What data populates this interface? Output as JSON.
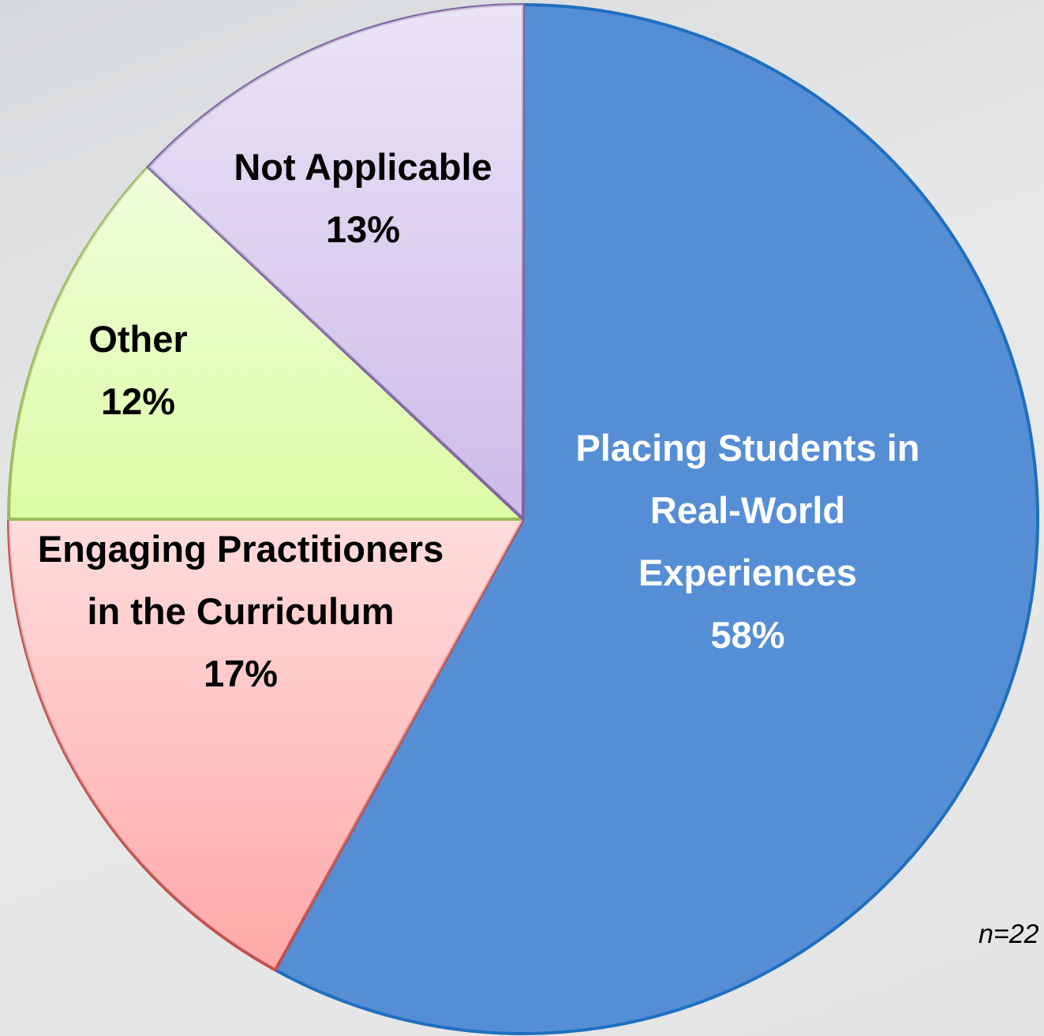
{
  "chart_data": {
    "type": "pie",
    "categories": [
      "Placing Students in Real-World Experiences",
      "Engaging Practitioners in the Curriculum",
      "Other",
      "Not Applicable"
    ],
    "values": [
      58,
      17,
      12,
      13
    ],
    "value_labels": [
      "58%",
      "17%",
      "12%",
      "13%"
    ],
    "colors": [
      "#558ed5",
      "#ffa8a8",
      "#dcfca6",
      "#cdbbe9"
    ],
    "stroke_colors": [
      "#1f6fc0",
      "#c0504d",
      "#9bbb59",
      "#8064a2"
    ],
    "label_colors": [
      "#ffffff",
      "#000000",
      "#000000",
      "#000000"
    ],
    "annotation": "n=22"
  }
}
